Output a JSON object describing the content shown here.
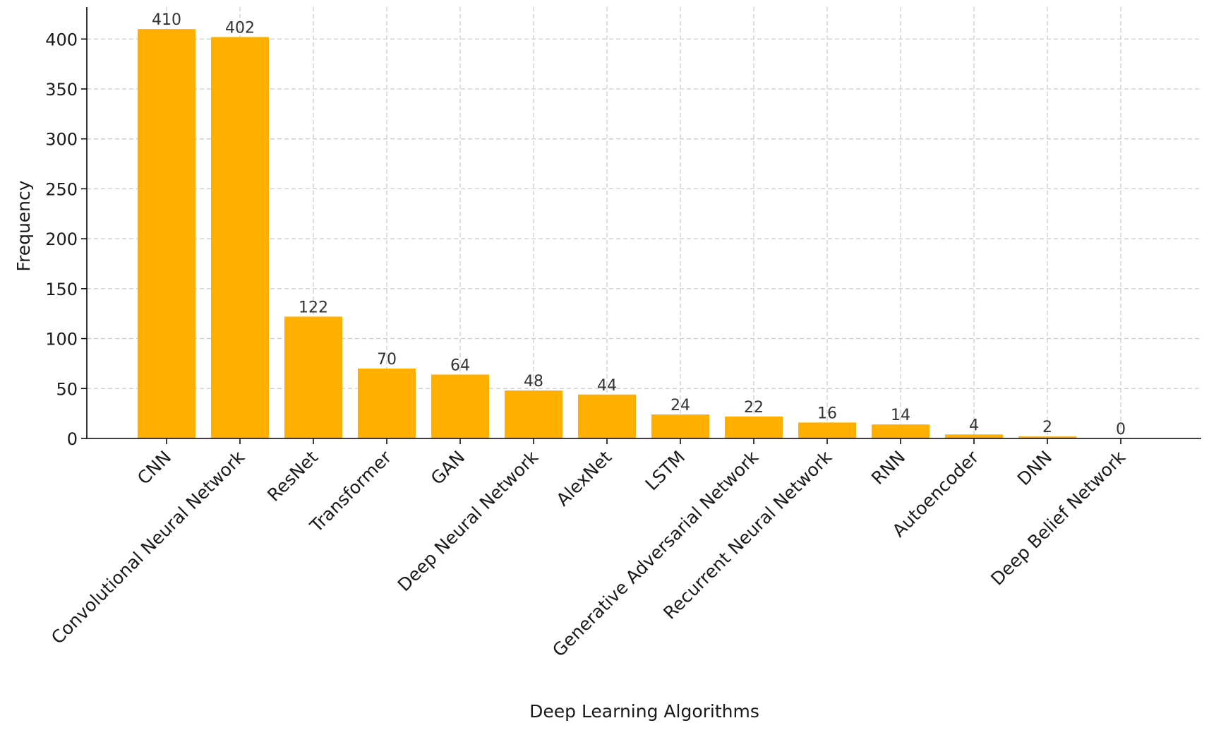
{
  "chart_data": {
    "type": "bar",
    "title": "",
    "xlabel": "Deep Learning Algorithms",
    "ylabel": "Frequency",
    "categories": [
      "CNN",
      "Convolutional Neural Network",
      "ResNet",
      "Transformer",
      "GAN",
      "Deep Neural Network",
      "AlexNet",
      "LSTM",
      "Generative Adversarial Network",
      "Recurrent Neural Network",
      "RNN",
      "Autoencoder",
      "DNN",
      "Deep Belief Network"
    ],
    "values": [
      410,
      402,
      122,
      70,
      64,
      48,
      44,
      24,
      22,
      16,
      14,
      4,
      2,
      0
    ],
    "ylim": [
      0,
      432
    ],
    "yticks": [
      0,
      50,
      100,
      150,
      200,
      250,
      300,
      350,
      400
    ],
    "grid": true,
    "legend": "none",
    "colors": {
      "bar": "#FFAF00",
      "grid": "#cccccc",
      "axis": "#000000",
      "text": "#1a1a1a"
    }
  }
}
